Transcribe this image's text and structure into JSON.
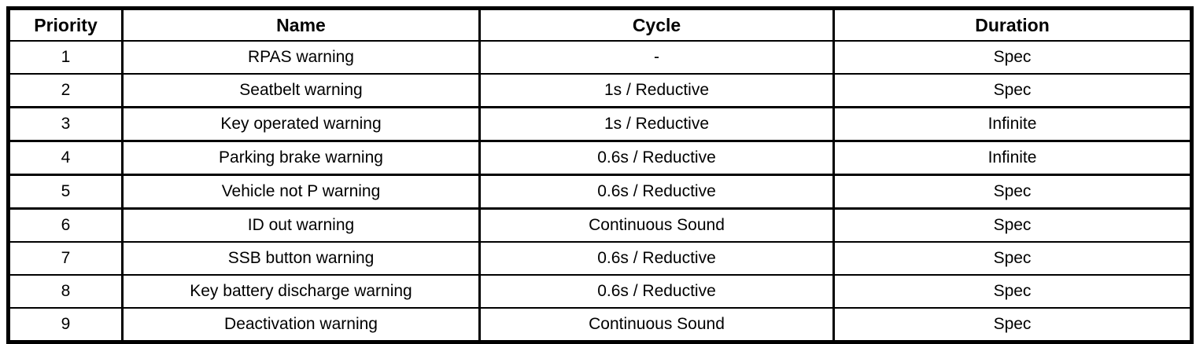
{
  "table": {
    "name": "warning-priority-table",
    "colors": {
      "border": "#000000",
      "background": "#ffffff",
      "text": "#000000"
    },
    "columns": [
      {
        "key": "priority",
        "label": "Priority"
      },
      {
        "key": "name",
        "label": "Name"
      },
      {
        "key": "cycle",
        "label": "Cycle"
      },
      {
        "key": "duration",
        "label": "Duration"
      }
    ],
    "rows": [
      {
        "priority": "1",
        "name": "RPAS warning",
        "cycle": "-",
        "duration": "Spec"
      },
      {
        "priority": "2",
        "name": "Seatbelt warning",
        "cycle": "1s / Reductive",
        "duration": "Spec"
      },
      {
        "priority": "3",
        "name": "Key operated warning",
        "cycle": "1s / Reductive",
        "duration": "Infinite"
      },
      {
        "priority": "4",
        "name": "Parking brake warning",
        "cycle": "0.6s / Reductive",
        "duration": "Infinite"
      },
      {
        "priority": "5",
        "name": "Vehicle not P warning",
        "cycle": "0.6s / Reductive",
        "duration": "Spec"
      },
      {
        "priority": "6",
        "name": "ID out warning",
        "cycle": "Continuous Sound",
        "duration": "Spec"
      },
      {
        "priority": "7",
        "name": "SSB button warning",
        "cycle": "0.6s / Reductive",
        "duration": "Spec"
      },
      {
        "priority": "8",
        "name": "Key battery discharge warning",
        "cycle": "0.6s / Reductive",
        "duration": "Spec"
      },
      {
        "priority": "9",
        "name": "Deactivation warning",
        "cycle": "Continuous Sound",
        "duration": "Spec"
      }
    ]
  }
}
